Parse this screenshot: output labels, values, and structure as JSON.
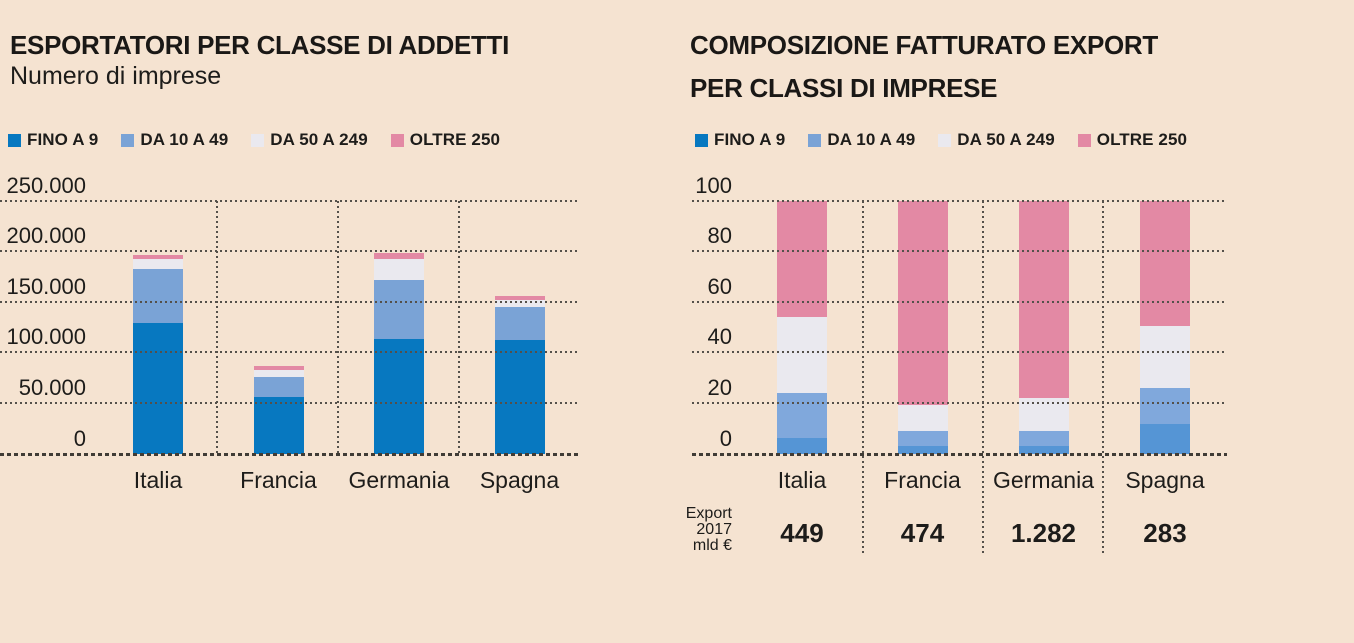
{
  "page": {
    "background_color": "#f5e3d1",
    "text_color": "#1d1c1a",
    "grid_dot_color": "#54504a"
  },
  "legend": {
    "items": [
      {
        "label": "FINO A 9",
        "color": "#0778c0"
      },
      {
        "label": "DA 10 A 49",
        "color": "#7aa3d6"
      },
      {
        "label": "DA 50 A 249",
        "color": "#eae9ef"
      },
      {
        "label": "OLTRE 250",
        "color": "#e389a4"
      }
    ]
  },
  "chart_data": [
    {
      "type": "bar",
      "stacked": true,
      "title": "ESPORTATORI PER CLASSE DI ADDETTI",
      "subtitle": "Numero di imprese",
      "categories": [
        "Italia",
        "Francia",
        "Germania",
        "Spagna"
      ],
      "series": [
        {
          "name": "FINO A 9",
          "color": "#0778c0",
          "values": [
            129000,
            56000,
            113000,
            112000
          ]
        },
        {
          "name": "DA 10 A 49",
          "color": "#7aa3d6",
          "values": [
            53000,
            20000,
            58500,
            32500
          ]
        },
        {
          "name": "DA 50 A 249",
          "color": "#eae9ef",
          "values": [
            10500,
            6500,
            20500,
            7500
          ]
        },
        {
          "name": "OLTRE 250",
          "color": "#e389a4",
          "values": [
            3500,
            4000,
            6500,
            4000
          ]
        }
      ],
      "ylim": [
        0,
        250000
      ],
      "ytick_labels": [
        "0",
        "50.000",
        "100.000",
        "150.000",
        "200.000",
        "250.000"
      ],
      "grid": "dotted horizontal lines drawn over bars, dotted column separators, legend top-left"
    },
    {
      "type": "bar",
      "stacked": true,
      "title_lines": [
        "COMPOSIZIONE FATTURATO EXPORT",
        "PER CLASSI DI IMPRESE"
      ],
      "categories": [
        "Italia",
        "Francia",
        "Germania",
        "Spagna"
      ],
      "series": [
        {
          "name": "FINO A 9",
          "color": "#5595d5",
          "values": [
            6,
            3,
            3,
            11.5
          ]
        },
        {
          "name": "DA 10 A 49",
          "color": "#80a8dc",
          "values": [
            18,
            6,
            6,
            14.5
          ]
        },
        {
          "name": "DA 50 A 249",
          "color": "#eae9ef",
          "values": [
            30,
            10,
            13,
            24.5
          ]
        },
        {
          "name": "OLTRE 250",
          "color": "#e389a4",
          "values": [
            46,
            81,
            78,
            49.5
          ]
        }
      ],
      "ylim": [
        0,
        100
      ],
      "ytick_labels": [
        "0",
        "20",
        "40",
        "60",
        "80",
        "100"
      ],
      "grid": "dotted horizontal lines drawn over bars, dotted column separators extending into footer",
      "footer": {
        "label_lines": [
          "Export",
          "2017",
          "mld €"
        ],
        "values": [
          "449",
          "474",
          "1.282",
          "283"
        ]
      }
    }
  ]
}
